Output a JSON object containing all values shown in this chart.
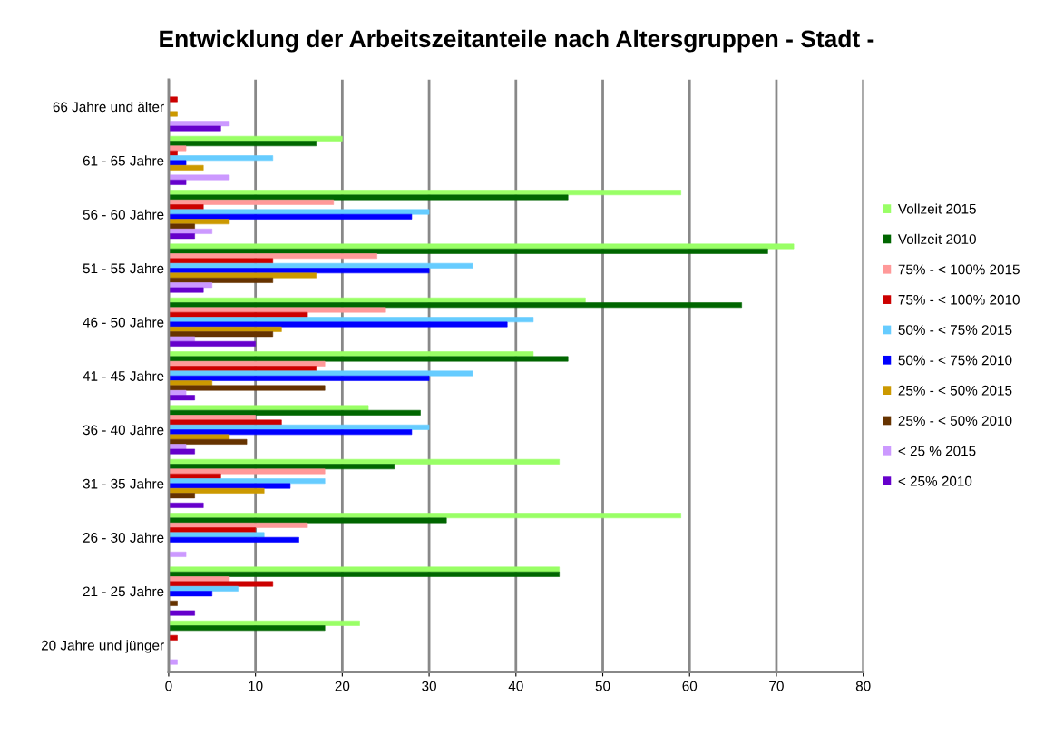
{
  "chart_data": {
    "type": "bar",
    "orientation": "horizontal",
    "title": "Entwicklung der Arbeitszeitanteile nach Altersgruppen - Stadt -",
    "categories": [
      "66 Jahre und älter",
      "61 - 65 Jahre",
      "56 - 60 Jahre",
      "51 - 55 Jahre",
      "46 - 50 Jahre",
      "41 - 45 Jahre",
      "36 - 40 Jahre",
      "31 - 35 Jahre",
      "26 - 30 Jahre",
      "21 - 25 Jahre",
      "20 Jahre und jünger"
    ],
    "series": [
      {
        "name": "Vollzeit 2015",
        "color": "#99ff66",
        "values": [
          0,
          20,
          59,
          72,
          48,
          42,
          23,
          45,
          59,
          45,
          22
        ]
      },
      {
        "name": "Vollzeit 2010",
        "color": "#006600",
        "values": [
          0,
          17,
          46,
          69,
          66,
          46,
          29,
          26,
          32,
          45,
          18
        ]
      },
      {
        "name": "75% - < 100% 2015",
        "color": "#ff9999",
        "values": [
          0,
          2,
          19,
          24,
          25,
          18,
          10,
          18,
          16,
          7,
          0
        ]
      },
      {
        "name": "75% - < 100% 2010",
        "color": "#cc0000",
        "values": [
          1,
          1,
          4,
          12,
          16,
          17,
          13,
          6,
          10,
          12,
          1
        ]
      },
      {
        "name": "50% - < 75% 2015",
        "color": "#66ccff",
        "values": [
          0,
          12,
          30,
          35,
          42,
          35,
          30,
          18,
          11,
          8,
          0
        ]
      },
      {
        "name": "50% - < 75% 2010",
        "color": "#0000ff",
        "values": [
          0,
          2,
          28,
          30,
          39,
          30,
          28,
          14,
          15,
          5,
          0
        ]
      },
      {
        "name": "25% - < 50% 2015",
        "color": "#cc9900",
        "values": [
          1,
          4,
          7,
          17,
          13,
          5,
          7,
          11,
          0,
          0,
          0
        ]
      },
      {
        "name": "25% - < 50% 2010",
        "color": "#663300",
        "values": [
          0,
          0,
          3,
          12,
          12,
          18,
          9,
          3,
          0,
          1,
          0
        ]
      },
      {
        "name": "< 25 % 2015",
        "color": "#cc99ff",
        "values": [
          7,
          7,
          5,
          5,
          3,
          2,
          2,
          0,
          2,
          0,
          1
        ]
      },
      {
        "name": "< 25% 2010",
        "color": "#6600cc",
        "values": [
          6,
          2,
          3,
          4,
          10,
          3,
          3,
          4,
          0,
          3,
          0
        ]
      }
    ],
    "xlim": [
      0,
      80
    ],
    "xticks": [
      0,
      10,
      20,
      30,
      40,
      50,
      60,
      70,
      80
    ],
    "grid": "x",
    "legend": "right"
  }
}
